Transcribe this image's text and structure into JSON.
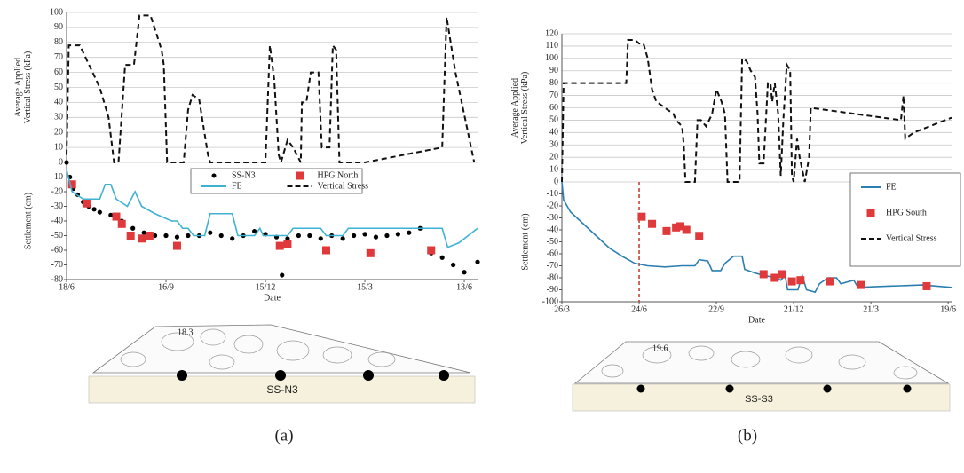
{
  "chart_data": [
    {
      "type": "line",
      "ylabel": [
        "Average Applied",
        "Vertical Stress (kPa)"
      ],
      "xlim": [
        0,
        372
      ],
      "ylim": [
        0,
        100
      ],
      "yticks": [
        0,
        10,
        20,
        30,
        40,
        50,
        60,
        70,
        80,
        90,
        100
      ],
      "grid": true,
      "series": [
        {
          "name": "Vertical Stress",
          "kind": "dashed",
          "color": "#111111",
          "x": [
            0,
            2,
            12,
            30,
            38,
            43,
            47,
            53,
            61,
            66,
            76,
            86,
            88,
            91,
            106,
            110,
            114,
            120,
            128,
            130,
            180,
            184,
            188,
            192,
            194,
            200,
            205,
            212,
            213,
            217,
            221,
            228,
            231,
            238,
            241,
            244,
            247,
            270,
            340,
            344,
            352,
            369
          ],
          "values": [
            5,
            78,
            78,
            50,
            30,
            0,
            0,
            65,
            65,
            98,
            98,
            75,
            65,
            0,
            0,
            35,
            45,
            42,
            5,
            0,
            0,
            78,
            55,
            5,
            0,
            15,
            10,
            0,
            40,
            40,
            60,
            60,
            10,
            10,
            78,
            75,
            0,
            0,
            10,
            97,
            60,
            0
          ]
        }
      ]
    },
    {
      "type": "line",
      "xlabel": "Date",
      "ylabel": [
        "Settlement (cm)"
      ],
      "legend": "upper right",
      "xlim": [
        0,
        372
      ],
      "ylim": [
        -80,
        0
      ],
      "yticks": [
        -10,
        -20,
        -30,
        -40,
        -50,
        -60,
        -70,
        -80
      ],
      "xticks": [
        {
          "value": 0,
          "label": "18/6"
        },
        {
          "value": 90,
          "label": "16/9"
        },
        {
          "value": 180,
          "label": "15/12"
        },
        {
          "value": 270,
          "label": "15/3"
        },
        {
          "value": 360,
          "label": "13/6"
        }
      ],
      "series": [
        {
          "name": "SS-N3",
          "kind": "dots",
          "color": "#000000",
          "x": [
            0,
            3,
            6,
            10,
            15,
            20,
            25,
            30,
            40,
            50,
            60,
            70,
            80,
            90,
            100,
            110,
            120,
            130,
            140,
            150,
            160,
            170,
            180,
            190,
            195,
            200,
            210,
            220,
            230,
            240,
            250,
            260,
            270,
            280,
            290,
            300,
            310,
            320,
            330,
            340,
            350,
            360,
            372
          ],
          "values": [
            0,
            -10,
            -18,
            -22,
            -27,
            -30,
            -32,
            -34,
            -36,
            -40,
            -45,
            -48,
            -50,
            -50,
            -51,
            -50,
            -50,
            -48,
            -50,
            -52,
            -50,
            -47,
            -49,
            -51,
            -77,
            -52,
            -50,
            -50,
            -52,
            -50,
            -52,
            -50,
            -49,
            -51,
            -50,
            -49,
            -48,
            -45,
            -62,
            -65,
            -70,
            -75,
            -68
          ]
        },
        {
          "name": "HPG North",
          "kind": "squares",
          "color": "#e0393b",
          "x": [
            5,
            18,
            45,
            50,
            58,
            68,
            75,
            100,
            193,
            200,
            235,
            275,
            330
          ],
          "values": [
            -15,
            -28,
            -37,
            -42,
            -50,
            -52,
            -50,
            -57,
            -57,
            -56,
            -60,
            -62,
            -60
          ]
        },
        {
          "name": "FE",
          "kind": "line",
          "color": "#3fb1d3",
          "x": [
            0,
            5,
            15,
            30,
            35,
            40,
            45,
            55,
            62,
            68,
            80,
            95,
            100,
            105,
            110,
            115,
            125,
            130,
            150,
            155,
            170,
            175,
            178,
            200,
            205,
            230,
            235,
            250,
            255,
            340,
            345,
            355,
            372
          ],
          "values": [
            -5,
            -20,
            -25,
            -25,
            -15,
            -15,
            -25,
            -30,
            -20,
            -30,
            -35,
            -40,
            -40,
            -45,
            -45,
            -50,
            -50,
            -35,
            -35,
            -50,
            -50,
            -45,
            -50,
            -50,
            -45,
            -45,
            -50,
            -50,
            -45,
            -45,
            -58,
            -55,
            -45
          ]
        }
      ]
    },
    {
      "type": "line",
      "ylabel": [
        "Average Applied",
        "Vertical Stress (kPa)"
      ],
      "xlim": [
        0,
        454
      ],
      "ylim": [
        0,
        120
      ],
      "yticks": [
        0,
        10,
        20,
        30,
        40,
        50,
        60,
        70,
        80,
        90,
        100,
        110,
        120
      ],
      "grid": true,
      "series": [
        {
          "name": "Vertical Stress",
          "kind": "dashed",
          "color": "#111111",
          "x": [
            0,
            2,
            75,
            77,
            85,
            90,
            95,
            100,
            105,
            110,
            120,
            130,
            133,
            140,
            142,
            144,
            155,
            158,
            162,
            168,
            175,
            180,
            186,
            190,
            193,
            207,
            210,
            215,
            220,
            225,
            228,
            230,
            235,
            240,
            243,
            245,
            248,
            252,
            255,
            258,
            262,
            266,
            268,
            270,
            274,
            277,
            280,
            283,
            288,
            290,
            395,
            398,
            400,
            410,
            454
          ],
          "values": [
            0,
            80,
            80,
            115,
            115,
            112,
            112,
            100,
            75,
            65,
            60,
            55,
            50,
            45,
            30,
            0,
            0,
            50,
            50,
            45,
            55,
            75,
            65,
            55,
            0,
            0,
            100,
            98,
            90,
            85,
            55,
            15,
            15,
            80,
            80,
            65,
            80,
            55,
            5,
            50,
            95,
            90,
            5,
            0,
            35,
            20,
            10,
            0,
            20,
            60,
            50,
            70,
            35,
            40,
            52
          ]
        }
      ]
    },
    {
      "type": "line",
      "xlabel": "Date",
      "ylabel": [
        "Settlement (cm)"
      ],
      "legend": "upper right",
      "xlim": [
        0,
        454
      ],
      "ylim": [
        -100,
        0
      ],
      "yticks": [
        -10,
        -20,
        -30,
        -40,
        -50,
        -60,
        -70,
        -80,
        -90,
        -100
      ],
      "xticks": [
        {
          "value": 0,
          "label": "26/3"
        },
        {
          "value": 90,
          "label": "24/6"
        },
        {
          "value": 180,
          "label": "22/9"
        },
        {
          "value": 270,
          "label": "21/12"
        },
        {
          "value": 360,
          "label": "21/3"
        },
        {
          "value": 450,
          "label": "19/6"
        }
      ],
      "reference_line": {
        "x": 90,
        "color": "#c0392b"
      },
      "series": [
        {
          "name": "FE",
          "kind": "line",
          "color": "#2a7fb0",
          "x": [
            0,
            2,
            10,
            25,
            40,
            55,
            70,
            85,
            100,
            120,
            140,
            155,
            160,
            170,
            175,
            185,
            190,
            200,
            210,
            213,
            225,
            235,
            250,
            255,
            260,
            263,
            275,
            280,
            285,
            295,
            300,
            310,
            320,
            325,
            340,
            345,
            380,
            420,
            454
          ],
          "values": [
            0,
            -15,
            -25,
            -35,
            -45,
            -55,
            -62,
            -68,
            -70,
            -71,
            -70,
            -70,
            -65,
            -66,
            -74,
            -74,
            -68,
            -62,
            -62,
            -73,
            -76,
            -78,
            -80,
            -82,
            -78,
            -90,
            -90,
            -78,
            -90,
            -92,
            -85,
            -80,
            -80,
            -85,
            -82,
            -88,
            -87,
            -86,
            -88
          ]
        },
        {
          "name": "HPG South",
          "kind": "squares",
          "color": "#e0393b",
          "x": [
            93,
            105,
            122,
            133,
            138,
            145,
            160,
            235,
            248,
            257,
            268,
            278,
            312,
            348,
            425
          ],
          "values": [
            -29,
            -35,
            -41,
            -38,
            -37,
            -40,
            -45,
            -77,
            -80,
            -77,
            -83,
            -82,
            -83,
            -86,
            -87
          ]
        }
      ]
    }
  ],
  "panels": [
    {
      "label": "(a)",
      "height_label": "18.3",
      "section": "SS-N3"
    },
    {
      "label": "(b)",
      "height_label": "19.6",
      "section": "SS-S3"
    }
  ]
}
